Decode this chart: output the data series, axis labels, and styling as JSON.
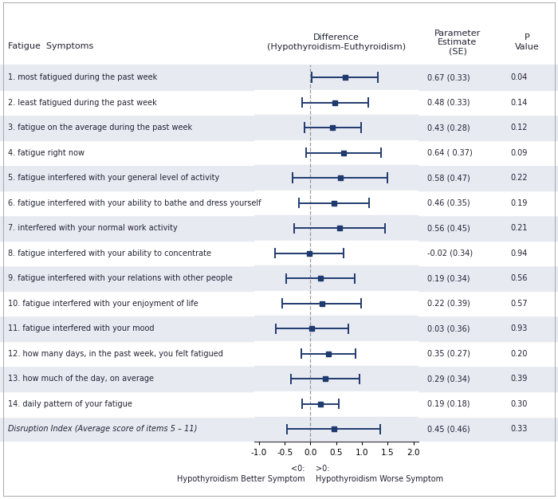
{
  "labels": [
    "1. most fatigued during the past week",
    "2. least fatigued during the past week",
    "3. fatigue on the average during the past week",
    "4. fatigue right now",
    "5. fatigue interfered with your general level of activity",
    "6. fatigue interfered with your ability to bathe and dress yourself",
    "7. interfered with your normal work activity",
    "8. fatigue interfered with your ability to concentrate",
    "9. fatigue interfered with your relations with other people",
    "10. fatigue interfered with your enjoyment of life",
    "11. fatigue interfered with your mood",
    "12. how many days, in the past week, you felt fatigued",
    "13. how much of the day, on average",
    "14. daily pattern of your fatigue",
    "Disruption Index (Average score of items 5 – 11)"
  ],
  "estimates": [
    0.67,
    0.48,
    0.43,
    0.64,
    0.58,
    0.46,
    0.56,
    -0.02,
    0.19,
    0.22,
    0.03,
    0.35,
    0.29,
    0.19,
    0.45
  ],
  "se": [
    0.33,
    0.33,
    0.28,
    0.37,
    0.47,
    0.35,
    0.45,
    0.34,
    0.34,
    0.39,
    0.36,
    0.27,
    0.34,
    0.18,
    0.46
  ],
  "pvalues": [
    "0.04",
    "0.14",
    "0.12",
    "0.09",
    "0.22",
    "0.19",
    "0.21",
    "0.94",
    "0.56",
    "0.57",
    "0.93",
    "0.20",
    "0.39",
    "0.30",
    "0.33"
  ],
  "param_labels": [
    "0.67 (0.33)",
    "0.48 (0.33)",
    "0.43 (0.28)",
    "0.64 ( 0.37)",
    "0.58 (0.47)",
    "0.46 (0.35)",
    "0.56 (0.45)",
    "-0.02 (0.34)",
    "0.19 (0.34)",
    "0.22 (0.39)",
    "0.03 (0.36)",
    "0.35 (0.27)",
    "0.29 (0.34)",
    "0.19 (0.18)",
    "0.45 (0.46)"
  ],
  "ci_multiplier": 1.96,
  "xmin": -1.1,
  "xmax": 2.1,
  "xticks": [
    -1.0,
    -0.5,
    0.0,
    0.5,
    1.0,
    1.5,
    2.0
  ],
  "xtick_labels": [
    "-1.0",
    "-0.5",
    "0.0",
    "0.5",
    "1.0",
    "1.5",
    "2.0"
  ],
  "marker_color": "#1F3A6E",
  "line_color": "#1F3A6E",
  "bg_color_odd": "#E8EAF2",
  "bg_color_even": "#FFFFFF",
  "header_left": "Fatigue  Symptoms",
  "header_center": "Difference\n(Hypothyroidism-Euthyroidism)",
  "header_right1": "Parameter\nEstimate\n(SE)",
  "header_right2": "P\nValue",
  "footer_left_label": "<0:",
  "footer_left_text": "Hypothyroidism Better Symptom",
  "footer_right_label": ">0:",
  "footer_right_text": "Hypothyroidism Worse Symptom",
  "text_color": "#222233",
  "border_color": "#999999",
  "font_size_label": 7.0,
  "font_size_header": 8.0,
  "font_size_tick": 7.5,
  "font_size_footer": 7.0
}
